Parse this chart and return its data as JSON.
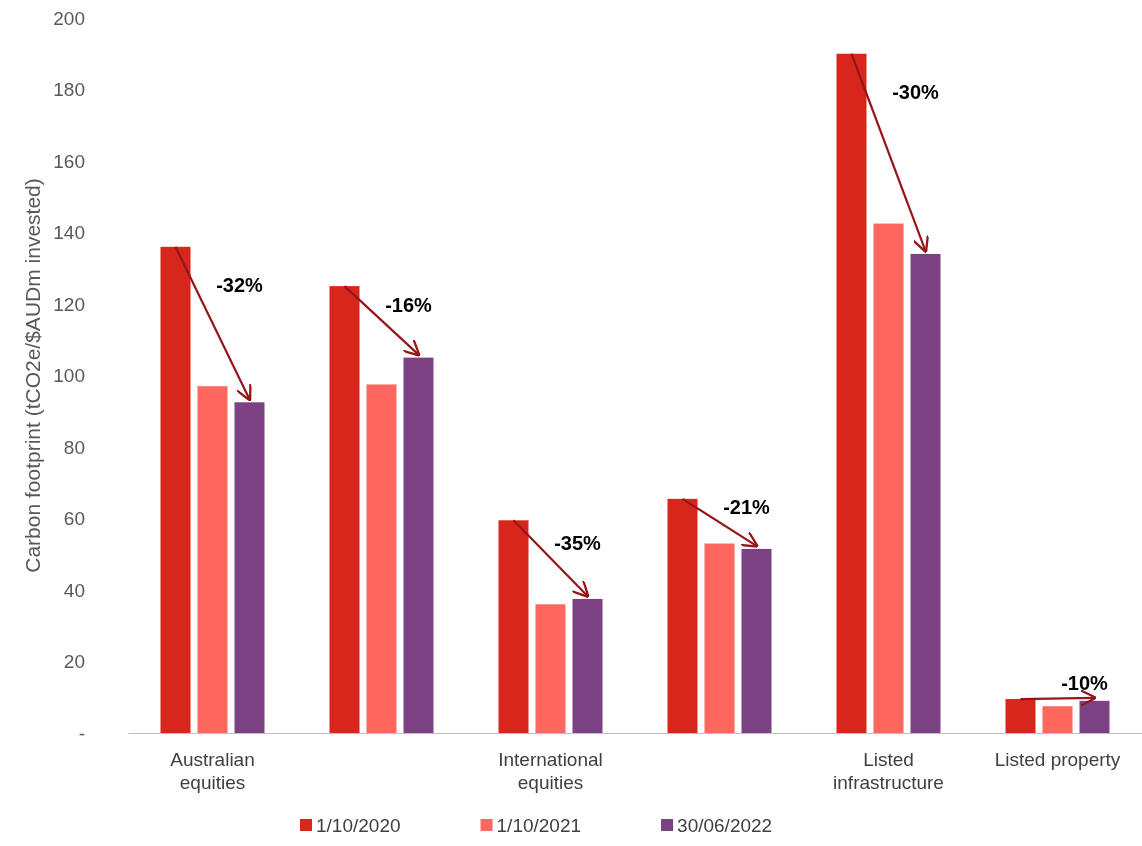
{
  "chart_data": {
    "type": "bar",
    "ylabel": "Carbon footprint (tCO2e/$AUDm invested)",
    "categories": [
      "Australian equities",
      null,
      "International equities",
      null,
      "Listed infrastructure",
      "Listed property"
    ],
    "series": [
      {
        "name": "1/10/2020",
        "color": "#d9261c",
        "values": [
          136,
          125,
          59.5,
          65.5,
          190,
          9.5
        ]
      },
      {
        "name": "1/10/2021",
        "color": "#fe675e",
        "values": [
          97,
          97.5,
          36,
          53,
          142.5,
          7.5
        ]
      },
      {
        "name": "30/06/2022",
        "color": "#7b4183",
        "values": [
          92.5,
          105,
          37.5,
          51.5,
          134,
          9
        ]
      }
    ],
    "ylim": [
      0,
      200
    ],
    "yticks": [
      {
        "value": 0,
        "label": "-"
      },
      20,
      40,
      60,
      80,
      100,
      120,
      140,
      160,
      180,
      200
    ],
    "grid": false,
    "legend": "bottom",
    "annotations": [
      "-32%",
      "-16%",
      "-35%",
      "-21%",
      "-30%",
      "-10%"
    ]
  }
}
